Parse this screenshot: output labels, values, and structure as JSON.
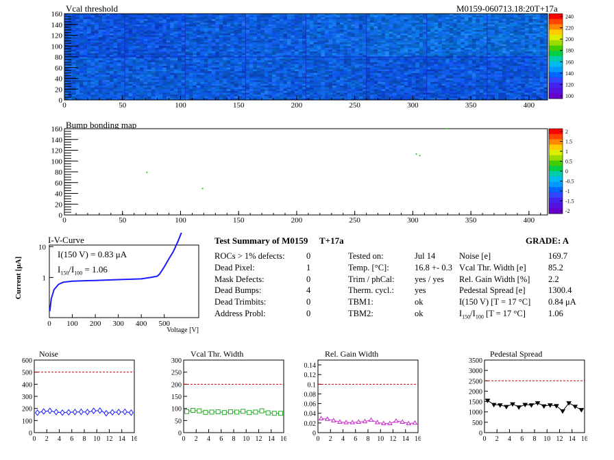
{
  "map1": {
    "title": "Vcal threshold",
    "run_label": "M0159-060713.18:20T+17a",
    "xticks": [
      0,
      50,
      100,
      150,
      200,
      250,
      300,
      350,
      400
    ],
    "yticks": [
      0,
      20,
      40,
      60,
      80,
      100,
      120,
      140,
      160
    ],
    "palette_ticks": [
      "240",
      "220",
      "200",
      "180",
      "160",
      "140",
      "120",
      "100"
    ]
  },
  "map2": {
    "title": "Bump bonding map",
    "xticks": [
      0,
      50,
      100,
      150,
      200,
      250,
      300,
      350,
      400
    ],
    "yticks": [
      0,
      20,
      40,
      60,
      80,
      100,
      120,
      140,
      160
    ],
    "palette_ticks": [
      "2",
      "1.5",
      "1",
      "0.5",
      "0",
      "-0.5",
      "-1",
      "-1.5",
      "-2"
    ],
    "defects": [
      [
        71,
        79
      ],
      [
        119,
        49
      ],
      [
        303,
        113
      ],
      [
        306,
        110
      ],
      [
        329,
        160
      ]
    ]
  },
  "iv": {
    "title": "I-V-Curve",
    "line1": "I(150 V) = 0.83 μA",
    "line2_a": "I",
    "line2_s1": "150",
    "line2_b": "/I",
    "line2_s2": "100",
    "line2_c": "=  1.06",
    "ylabel": "Current [μA]",
    "xlabel": "Voltage [V]",
    "xticks": [
      0,
      100,
      200,
      300,
      400,
      500
    ],
    "yticks": [
      "1",
      "10"
    ]
  },
  "summary": {
    "title": "Test Summary of M0159",
    "temp_tag": "T+17a",
    "grade": "GRADE:  A",
    "col1": [
      {
        "label": "ROCs > 1% defects:",
        "value": "0"
      },
      {
        "label": "Dead Pixel:",
        "value": "1"
      },
      {
        "label": "Mask Defects:",
        "value": "0"
      },
      {
        "label": "Dead Bumps:",
        "value": "4"
      },
      {
        "label": "Dead Trimbits:",
        "value": "0"
      },
      {
        "label": "Address Probl:",
        "value": "0"
      }
    ],
    "col2": [
      {
        "label": "Tested on:",
        "value": "Jul 14"
      },
      {
        "label": "Temp. [°C]:",
        "value": "16.8 +- 0.3"
      },
      {
        "label": "Trim / phCal:",
        "value": "yes / yes"
      },
      {
        "label": "Therm. cycl.:",
        "value": "yes"
      },
      {
        "label": "TBM1:",
        "value": "ok"
      },
      {
        "label": "TBM2:",
        "value": "ok"
      }
    ],
    "col3": [
      {
        "label": "Noise [e]",
        "value": "169.7"
      },
      {
        "label": "Vcal Thr. Width [e]",
        "value": "85.2"
      },
      {
        "label": "Rel. Gain Width [%]",
        "value": "2.2"
      },
      {
        "label": "Pedestal Spread [e]",
        "value": "1300.4"
      },
      {
        "label": "I(150 V) [T = 17 °C]",
        "value": "0.84 μA"
      },
      {
        "label_a": "I",
        "label_s1": "150",
        "label_b": "/I",
        "label_s2": "100",
        "label_c": "  [T = 17 °C]",
        "value": "1.06"
      }
    ]
  },
  "chart_data": [
    {
      "type": "scatter",
      "title": "Noise",
      "x": [
        0,
        1,
        2,
        3,
        4,
        5,
        6,
        7,
        8,
        9,
        10,
        11,
        12,
        13,
        14,
        15
      ],
      "values": [
        165,
        175,
        180,
        170,
        165,
        168,
        170,
        172,
        170,
        180,
        182,
        160,
        168,
        170,
        172,
        165
      ],
      "xlim": [
        0,
        16
      ],
      "ylim": [
        0,
        600
      ],
      "yticks": [
        0,
        100,
        200,
        300,
        400,
        500,
        600
      ],
      "threshold": 500,
      "color": "#1a1aff",
      "marker": "diamond"
    },
    {
      "type": "scatter",
      "title": "Vcal Thr. Width",
      "x": [
        0,
        1,
        2,
        3,
        4,
        5,
        6,
        7,
        8,
        9,
        10,
        11,
        12,
        13,
        14,
        15
      ],
      "values": [
        87,
        92,
        90,
        84,
        85,
        86,
        83,
        86,
        85,
        88,
        83,
        85,
        90,
        82,
        80,
        80
      ],
      "xlim": [
        0,
        16
      ],
      "ylim": [
        0,
        300
      ],
      "yticks": [
        0,
        50,
        100,
        150,
        200,
        250,
        300
      ],
      "threshold": 200,
      "color": "#22aa22",
      "marker": "square"
    },
    {
      "type": "scatter",
      "title": "Rel. Gain Width",
      "x": [
        0,
        1,
        2,
        3,
        4,
        5,
        6,
        7,
        8,
        9,
        10,
        11,
        12,
        13,
        14,
        15
      ],
      "values": [
        0.029,
        0.028,
        0.025,
        0.022,
        0.021,
        0.021,
        0.022,
        0.023,
        0.026,
        0.021,
        0.019,
        0.019,
        0.024,
        0.022,
        0.019,
        0.02
      ],
      "xlim": [
        0,
        16
      ],
      "ylim": [
        0,
        0.15
      ],
      "yticks": [
        0,
        0.02,
        0.04,
        0.06,
        0.08,
        0.1,
        0.12,
        0.14
      ],
      "threshold": 0.1,
      "color": "#cc22cc",
      "marker": "triangle"
    },
    {
      "type": "scatter",
      "title": "Pedestal Spread",
      "x": [
        0,
        1,
        2,
        3,
        4,
        5,
        6,
        7,
        8,
        9,
        10,
        11,
        12,
        13,
        14,
        15
      ],
      "values": [
        1550,
        1350,
        1330,
        1250,
        1380,
        1230,
        1350,
        1330,
        1430,
        1280,
        1330,
        1290,
        1040,
        1430,
        1260,
        1100
      ],
      "xlim": [
        0,
        16
      ],
      "ylim": [
        0,
        3500
      ],
      "yticks": [
        0,
        500,
        1000,
        1500,
        2000,
        2500,
        3000,
        3500
      ],
      "threshold": 2500,
      "color": "#000000",
      "marker": "triangle-down"
    }
  ]
}
